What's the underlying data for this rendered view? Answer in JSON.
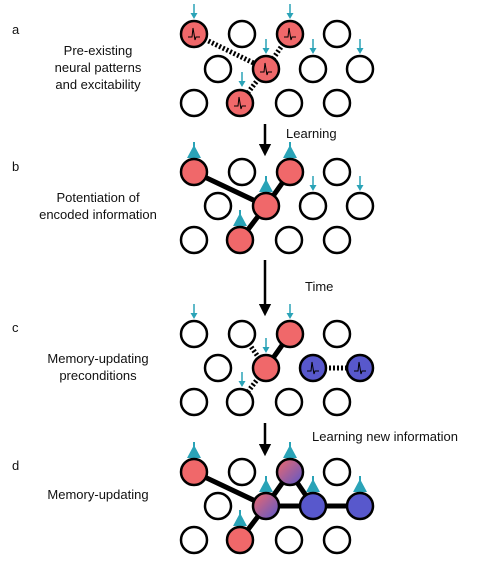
{
  "colors": {
    "active": "#f0686a",
    "new": "#5858cc",
    "inactive_fill": "#ffffff",
    "stroke": "#000000",
    "input": "#2aa3b7"
  },
  "panels": [
    {
      "id": "a",
      "letter": "a",
      "caption_lines": [
        "Pre-existing",
        "neural patterns",
        "and excitability"
      ]
    },
    {
      "id": "b",
      "letter": "b",
      "caption_lines": [
        "Potentiation of",
        "encoded information"
      ]
    },
    {
      "id": "c",
      "letter": "c",
      "caption_lines": [
        "Memory-updating",
        "preconditions"
      ]
    },
    {
      "id": "d",
      "letter": "d",
      "caption_lines": [
        "Memory-updating"
      ]
    }
  ],
  "transitions": [
    {
      "label": "Learning"
    },
    {
      "label": "Time"
    },
    {
      "label": "Learning new information"
    }
  ],
  "icons": {
    "input_small": "thin-arrow-input-icon",
    "input_large": "triangle-input-icon",
    "spike": "spike-trace-icon"
  }
}
